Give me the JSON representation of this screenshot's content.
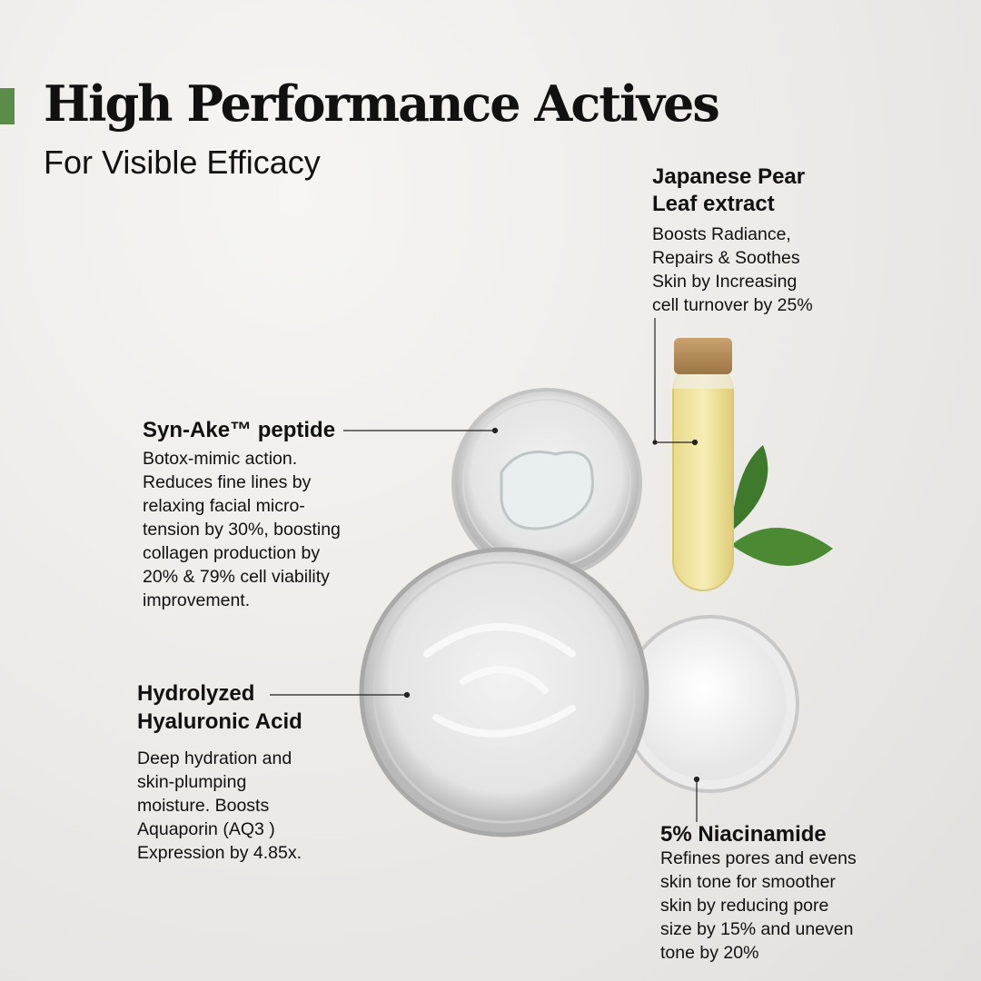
{
  "header": {
    "title": "High Performance Actives",
    "subtitle": "For Visible Efficacy",
    "accent_color": "#5b8c4a"
  },
  "ingredients": [
    {
      "title_lines": [
        "Japanese Pear",
        "Leaf extract"
      ],
      "body_lines": [
        "Boosts Radiance,",
        "Repairs & Soothes",
        "Skin by Increasing",
        "cell turnover by 25%"
      ]
    },
    {
      "title_lines": [
        "Syn-Ake™ peptide"
      ],
      "body_lines": [
        "Botox-mimic action.",
        "Reduces fine lines by",
        "relaxing facial micro-",
        "tension by 30%, boosting",
        "collagen production by",
        "20% & 79% cell viability",
        "improvement."
      ]
    },
    {
      "title_lines": [
        "Hydrolyzed",
        "Hyaluronic Acid"
      ],
      "body_lines": [
        "Deep hydration and",
        "skin-plumping",
        "moisture. Boosts",
        "Aquaporin (AQ3 )",
        "Expression by 4.85x."
      ]
    },
    {
      "title_lines": [
        "5% Niacinamide"
      ],
      "body_lines": [
        "Refines pores and evens",
        "skin tone for smoother",
        "skin by reducing pore",
        "size by 15% and uneven",
        "tone by 20%"
      ]
    }
  ]
}
